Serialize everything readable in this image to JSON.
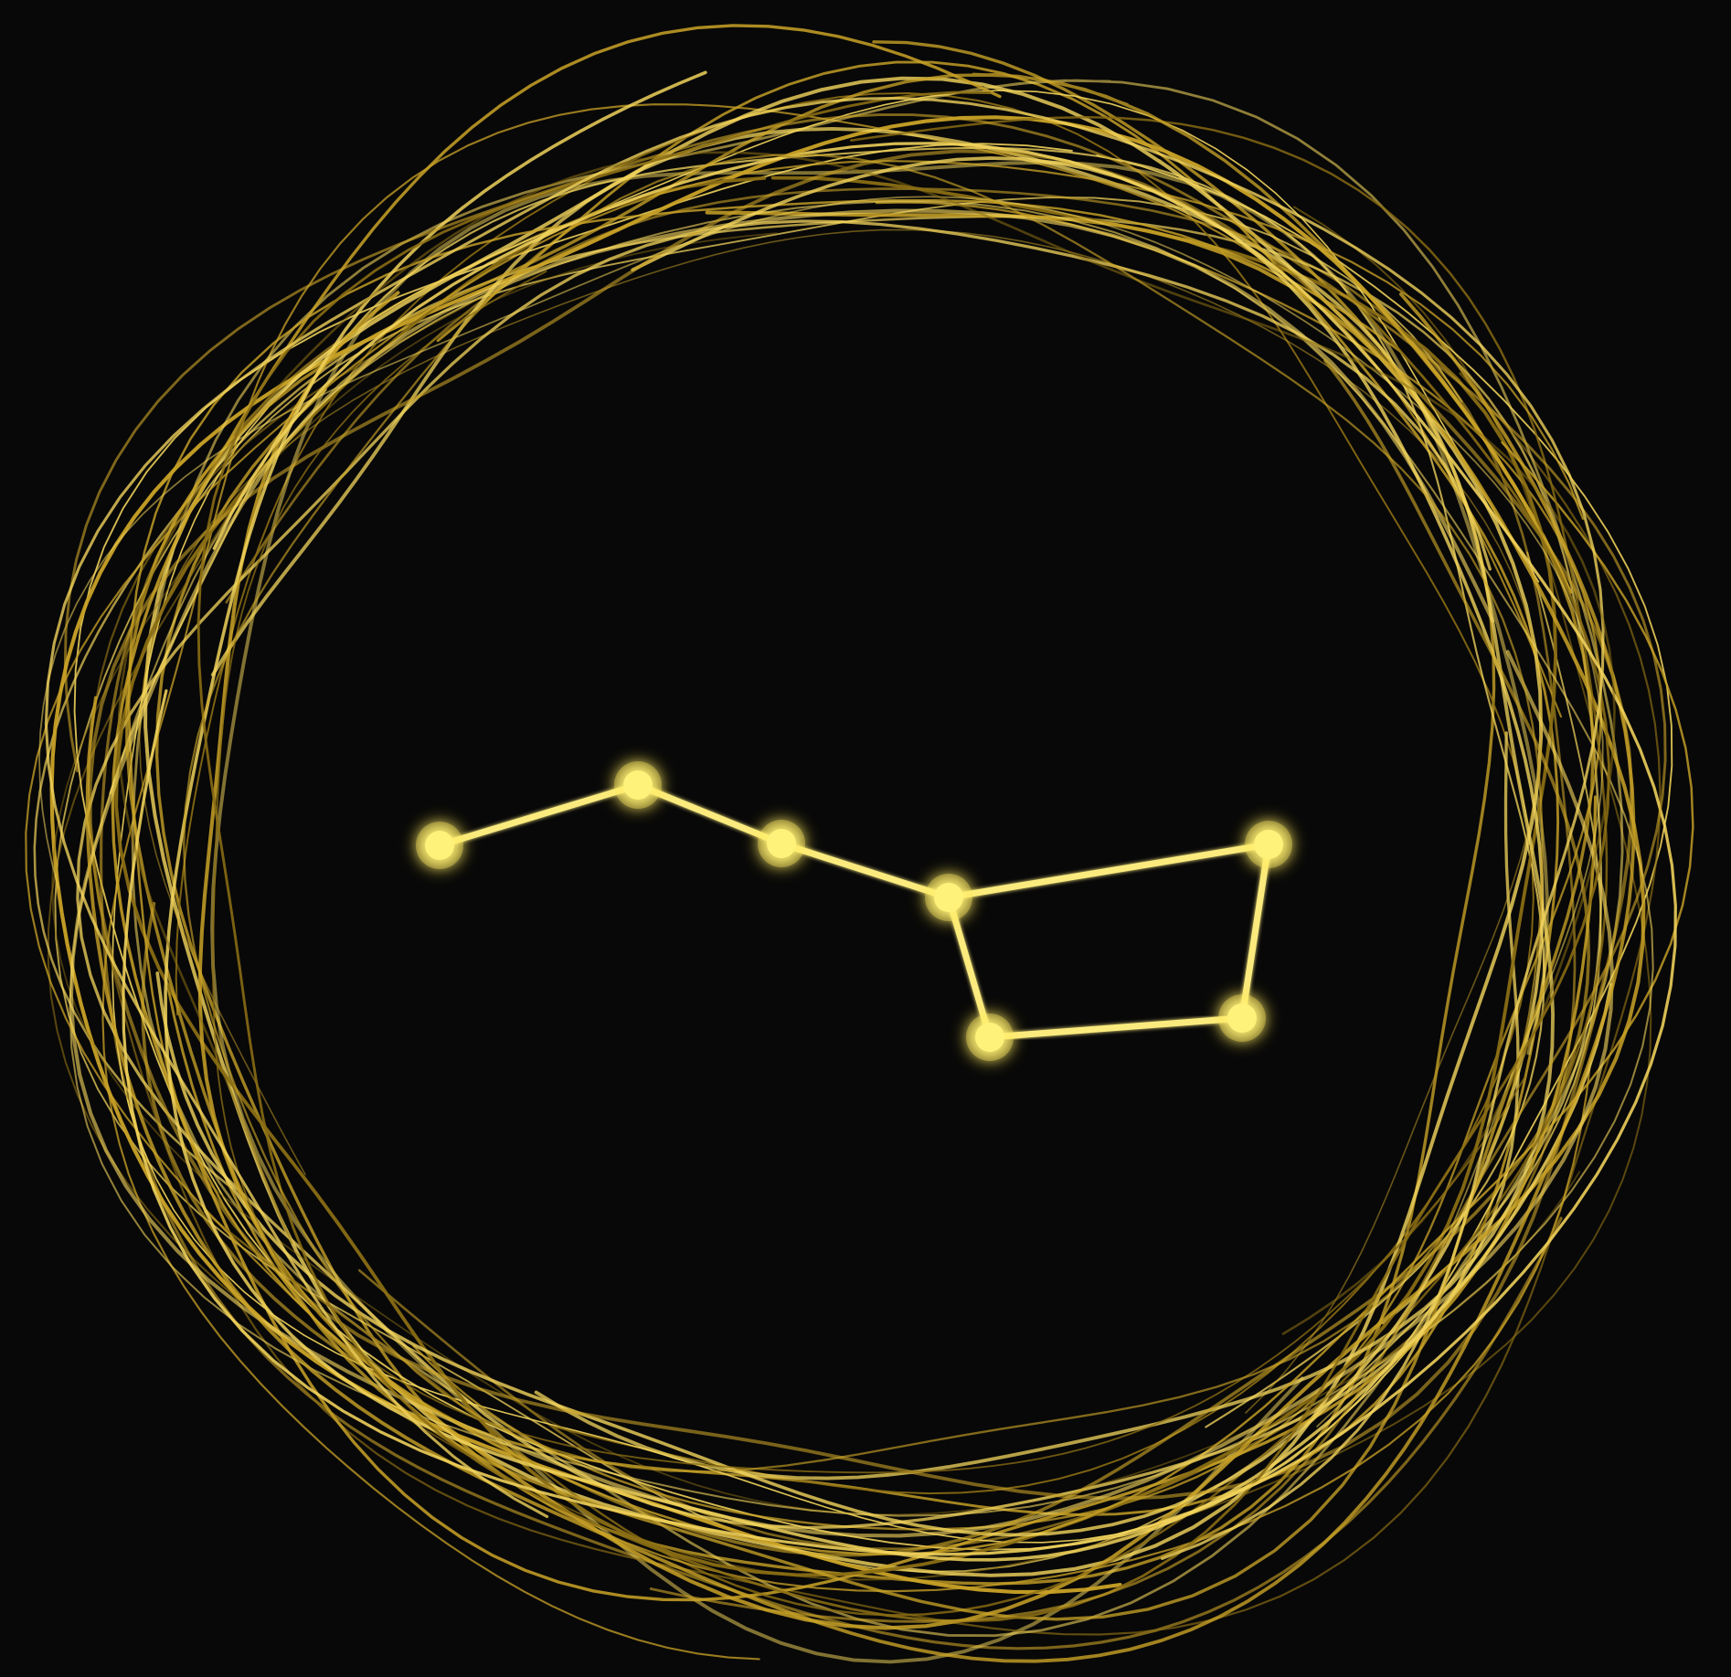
{
  "palette": {
    "background": "#080808",
    "ring_gold": "#c9a227",
    "ring_highlight": "#f2d45c",
    "ring_shadow": "#8a6d14",
    "star": "#fff27a",
    "star_glow": "#ffe95a",
    "line": "#fbeb7e"
  },
  "ring": {
    "icon": "gold-scribble-ring",
    "stroke_count": 44
  },
  "constellation": {
    "icon": "big-dipper-constellation",
    "star_count": 7,
    "connections": [
      [
        0,
        1
      ],
      [
        1,
        2
      ],
      [
        2,
        3
      ],
      [
        3,
        4
      ],
      [
        4,
        5
      ],
      [
        5,
        6
      ],
      [
        6,
        3
      ]
    ]
  }
}
